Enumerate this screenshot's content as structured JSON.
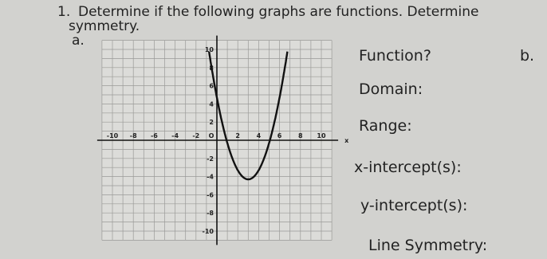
{
  "question": {
    "number": "1.",
    "line1": "Determine if the following graphs are functions. Determine",
    "line2": "symmetry."
  },
  "part_a": {
    "label": "a.",
    "graph": {
      "x_ticks": [
        "-10",
        "-8",
        "-6",
        "-4",
        "-2",
        "O",
        "2",
        "4",
        "6",
        "8",
        "10"
      ],
      "x_axis_label": "x",
      "y_ticks": [
        "10",
        "8",
        "6",
        "4",
        "2",
        "-2",
        "-4",
        "-6",
        "-8",
        "-10"
      ]
    },
    "prompts": [
      "Function?",
      "Domain:",
      "Range:",
      "x-intercept(s):",
      "y-intercept(s):",
      "Line Symmetry:"
    ]
  },
  "part_b": {
    "label": "b."
  }
}
